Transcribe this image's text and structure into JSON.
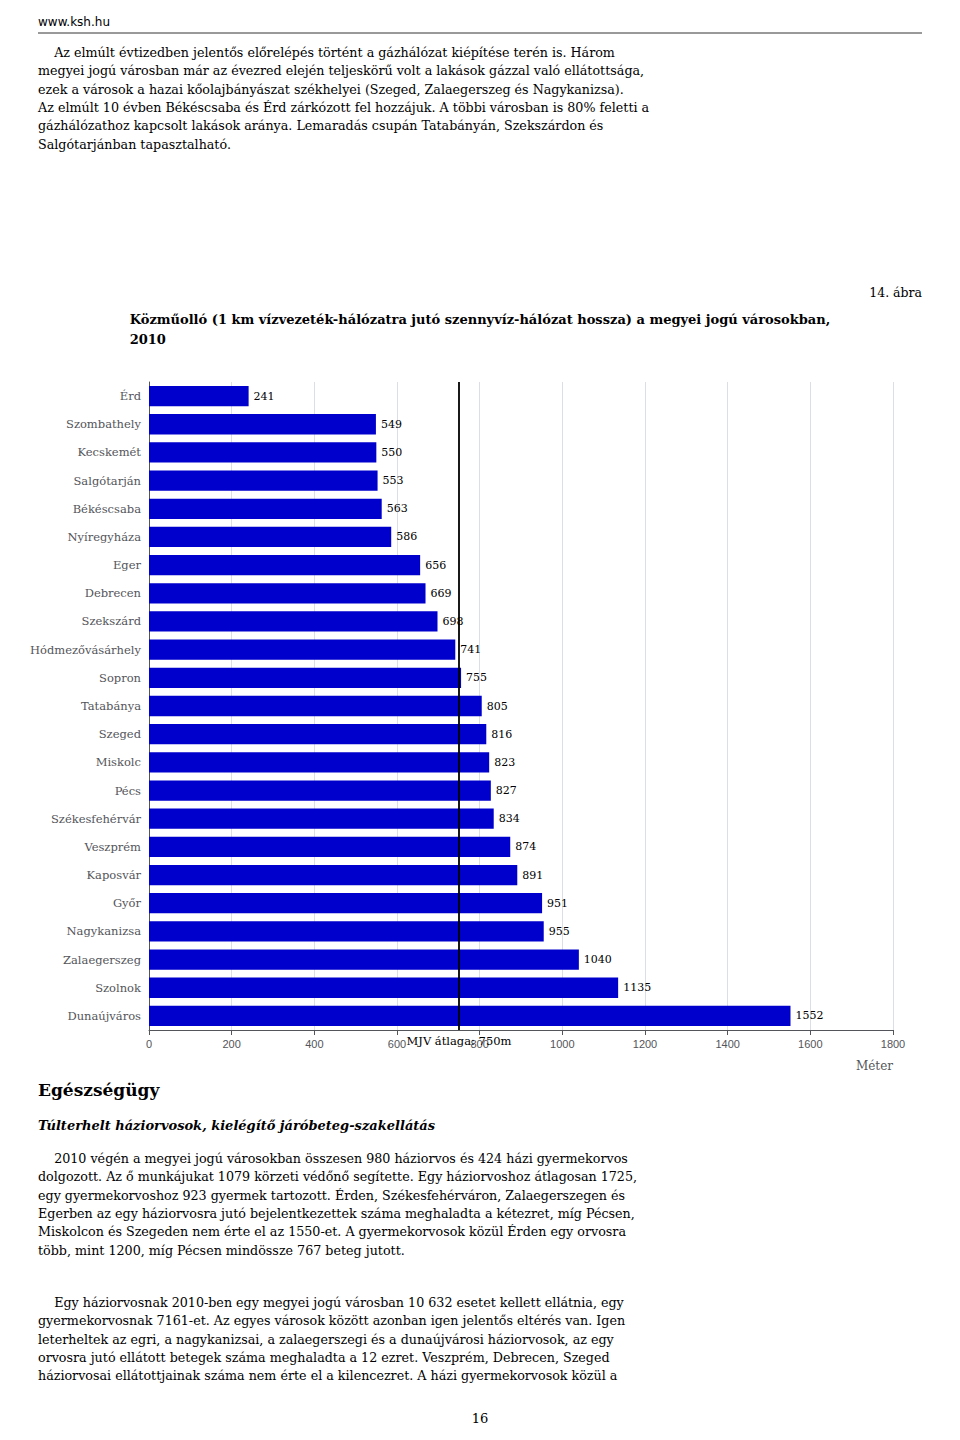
{
  "chart_data": {
    "type": "bar",
    "orientation": "horizontal",
    "title": "Közműolló (1 km vízvezeték-hálózatra jutó szennyvíz-hálózat hossza) a megyei jogú városokban,\n2010",
    "xlabel": "Méter",
    "categories": [
      "Érd",
      "Szombathely",
      "Kecskemét",
      "Salgótarján",
      "Békéscsaba",
      "Nyíregyháza",
      "Eger",
      "Debrecen",
      "Szekszárd",
      "Hódmezővásárhely",
      "Sopron",
      "Tatabánya",
      "Szeged",
      "Miskolc",
      "Pécs",
      "Székesfehérvár",
      "Veszprém",
      "Kaposvár",
      "Győr",
      "Nagykanizsa",
      "Zalaegerszeg",
      "Szolnok",
      "Dunaújváros"
    ],
    "values": [
      241,
      549,
      550,
      553,
      563,
      586,
      656,
      669,
      698,
      741,
      755,
      805,
      816,
      823,
      827,
      834,
      874,
      891,
      951,
      955,
      1040,
      1135,
      1552
    ],
    "color": "#0000CC",
    "xlim": [
      0,
      1800
    ],
    "xticks": [
      0,
      200,
      400,
      600,
      800,
      1000,
      1200,
      1400,
      1600,
      1800
    ],
    "grid": true,
    "data_labels": true,
    "annotations": [
      {
        "text": "MJV átlaga: 750m",
        "x": 750
      },
      "www.ksh.hu",
      "    Az elmúlt évtizedben jelentős előrelépés történt a gázhálózat kiépítése terén is. Három\nmegyei jogú városban már az évezred elején teljeskörű volt a lakások gázzal való ellátottsága,\nezek a városok a hazai kőolajbányászat székhelyei (Szeged, Zalaegerszeg és Nagykanizsa).\nAz elmúlt 10 évben Békéscsaba és Érd zárkózott fel hozzájuk. A többi városban is 80% feletti a\ngázhálózathoz kapcsolt lakások aránya. Lemaradás csupán Tatabányán, Szekszárdon és\nSalgótarjánban tapasztalható.",
      "14. ábra",
      "Egészségügy",
      "Túlterhelt háziorvosok, kielégítő járóbeteg-szakellátás",
      "    2010 végén a megyei jogú városokban összesen 980 háziorvos és 424 házi gyermekorvos\ndolgozott. Az ő munkájukat 1079 körzeti védőnő segítette. Egy háziorvoshoz átlagosan 1725,\negy gyermekorvoshoz 923 gyermek tartozott. Érden, Székesfehérváron, Zalaegerszegen és\nEgerben az egy háziorvosra jutó bejelentkezettek száma meghaladta a kétezret, míg Pécsen,\nMiskolcon és Szegeden nem érte el az 1550-et. A gyermekorvosok közül Érden egy orvosra\ntöbb, mint 1200, míg Pécsen mindössze 767 beteg jutott.",
      "    Egy háziorvosnak 2010-ben egy megyei jogú városban 10 632 esetet kellett ellátnia, egy\ngyermekorvosnak 7161-et. Az egyes városok között azonban igen jelentős eltérés van. Igen\nleterheltek az egri, a nagykanizsai, a zalaegerszegi és a dunaújvárosi háziorvosok, az egy\norvosra jutó ellátott betegek száma meghaladta a 12 ezret. Veszprém, Debrecen, Szeged\nháziorvosai ellátottjainak száma nem érte el a kilencezret. A házi gyermekorvosok közül a",
      "16"
    ]
  }
}
